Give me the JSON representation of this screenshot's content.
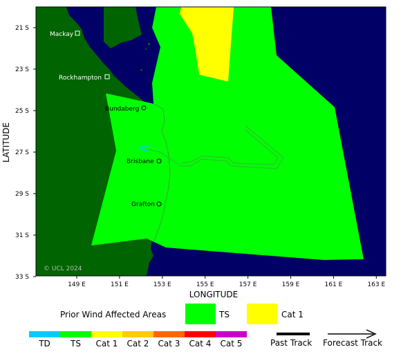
{
  "map": {
    "xlabel": "LONGITUDE",
    "ylabel": "LATITUDE",
    "copyright": "© UCL 2024",
    "colors": {
      "ocean": "#000066",
      "land": "#006400",
      "ts": "#00ff00",
      "cat1": "#ffff00"
    },
    "x_ticks": [
      "149 E",
      "151 E",
      "153 E",
      "155 E",
      "157 E",
      "159 E",
      "161 E",
      "163 E"
    ],
    "y_ticks": [
      "21 S",
      "23 S",
      "25 S",
      "27 S",
      "29 S",
      "31 S",
      "33 S"
    ],
    "cities": [
      {
        "name": "Mackay"
      },
      {
        "name": "Rockhampton"
      },
      {
        "name": "Bundaberg"
      },
      {
        "name": "Brisbane"
      },
      {
        "name": "Grafton"
      }
    ]
  },
  "legend": {
    "title": "Prior Wind Affected Areas",
    "ts_label": "TS",
    "cat1_label": "Cat 1"
  },
  "scale": {
    "items": [
      {
        "label": "TD",
        "color": "#00ccff"
      },
      {
        "label": "TS",
        "color": "#00ff00"
      },
      {
        "label": "Cat 1",
        "color": "#ffff00"
      },
      {
        "label": "Cat 2",
        "color": "#ffcc00"
      },
      {
        "label": "Cat 3",
        "color": "#ff6600"
      },
      {
        "label": "Cat 4",
        "color": "#ff0000"
      },
      {
        "label": "Cat 5",
        "color": "#cc00cc"
      }
    ],
    "past_track": "Past Track",
    "forecast_track": "Forecast Track"
  }
}
